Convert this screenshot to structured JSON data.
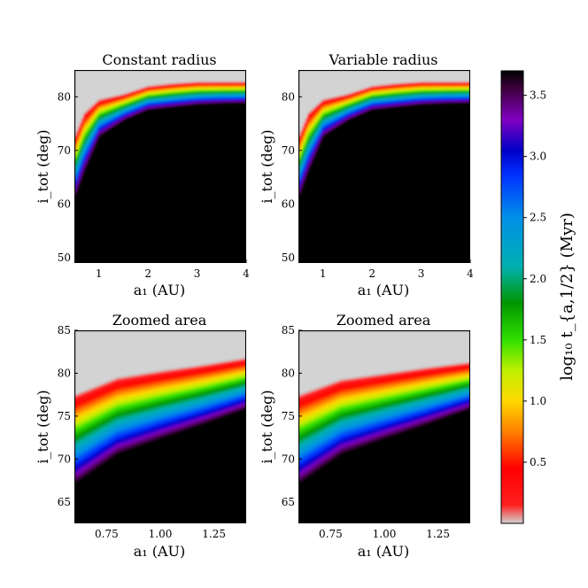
{
  "chart_data": [
    {
      "type": "heatmap",
      "id": "tl",
      "title": "Constant radius",
      "xlabel": "a₁ (AU)",
      "ylabel": "i_tot (deg)",
      "xlim": [
        0.5,
        4.0
      ],
      "ylim": [
        49.0,
        85.0
      ],
      "x_ticks": [
        1,
        2,
        3,
        4
      ],
      "y_ticks": [
        50,
        60,
        70,
        80
      ],
      "x_tick_labels": [
        "1",
        "2",
        "3",
        "4"
      ],
      "y_tick_labels": [
        "50",
        "60",
        "70",
        "80"
      ],
      "boundary_curve": {
        "a": [
          0.5,
          0.7,
          1.0,
          1.5,
          2.0,
          2.5,
          3.0,
          3.5,
          4.0
        ],
        "i_upper": [
          72.5,
          77.0,
          79.5,
          80.5,
          82.0,
          82.5,
          82.8,
          82.8,
          82.8
        ],
        "i_lower": [
          61.0,
          66.0,
          72.5,
          75.5,
          77.5,
          78.0,
          78.5,
          78.7,
          78.8
        ]
      }
    },
    {
      "type": "heatmap",
      "id": "tr",
      "title": "Variable radius",
      "xlabel": "a₁ (AU)",
      "ylabel": "i_tot (deg)",
      "xlim": [
        0.5,
        4.0
      ],
      "ylim": [
        49.0,
        85.0
      ],
      "x_ticks": [
        1,
        2,
        3,
        4
      ],
      "y_ticks": [
        50,
        60,
        70,
        80
      ],
      "x_tick_labels": [
        "1",
        "2",
        "3",
        "4"
      ],
      "y_tick_labels": [
        "50",
        "60",
        "70",
        "80"
      ],
      "boundary_curve": {
        "a": [
          0.5,
          0.7,
          1.0,
          1.5,
          2.0,
          2.5,
          3.0,
          3.5,
          4.0
        ],
        "i_upper": [
          72.5,
          77.0,
          79.5,
          80.5,
          82.0,
          82.5,
          82.8,
          82.8,
          82.8
        ],
        "i_lower": [
          61.0,
          66.0,
          72.5,
          75.5,
          77.5,
          78.0,
          78.5,
          78.7,
          78.8
        ]
      }
    },
    {
      "type": "heatmap",
      "id": "bl",
      "title": "Zoomed area",
      "xlabel": "a₁ (AU)",
      "ylabel": "i_tot (deg)",
      "xlim": [
        0.6,
        1.4
      ],
      "ylim": [
        62.5,
        85.0
      ],
      "x_ticks": [
        0.75,
        1.0,
        1.25
      ],
      "y_ticks": [
        65,
        70,
        75,
        80,
        85
      ],
      "x_tick_labels": [
        "0.75",
        "1.00",
        "1.25"
      ],
      "y_tick_labels": [
        "65",
        "70",
        "75",
        "80",
        "85"
      ],
      "boundary_curve": {
        "a": [
          0.6,
          0.8,
          1.0,
          1.2,
          1.4
        ],
        "i_upper": [
          77.5,
          79.5,
          80.3,
          81.0,
          81.8
        ],
        "i_lower": [
          67.0,
          70.5,
          72.3,
          74.0,
          75.8
        ]
      }
    },
    {
      "type": "heatmap",
      "id": "br",
      "title": "Zoomed area",
      "xlabel": "a₁ (AU)",
      "ylabel": "i_tot (deg)",
      "xlim": [
        0.6,
        1.4
      ],
      "ylim": [
        62.5,
        85.0
      ],
      "x_ticks": [
        0.75,
        1.0,
        1.25
      ],
      "y_ticks": [
        65,
        70,
        75,
        80,
        85
      ],
      "x_tick_labels": [
        "0.75",
        "1.00",
        "1.25"
      ],
      "y_tick_labels": [
        "65",
        "70",
        "75",
        "80",
        "85"
      ],
      "boundary_curve": {
        "a": [
          0.6,
          0.8,
          1.0,
          1.2,
          1.4
        ],
        "i_upper": [
          77.5,
          79.3,
          80.0,
          80.7,
          81.3
        ],
        "i_lower": [
          67.0,
          70.5,
          72.3,
          74.0,
          75.8
        ]
      }
    }
  ],
  "colorbar": {
    "label": "log₁₀ t_{a,1/2} (Myr)",
    "range": [
      0.0,
      3.7
    ],
    "ticks": [
      0.5,
      1.0,
      1.5,
      2.0,
      2.5,
      3.0,
      3.5
    ],
    "tick_labels": [
      "0.5",
      "1.0",
      "1.5",
      "2.0",
      "2.5",
      "3.0",
      "3.5"
    ],
    "colormap_stops": [
      {
        "v": 0.0,
        "color": "#d3d3d3"
      },
      {
        "v": 0.15,
        "color": "#ff2020"
      },
      {
        "v": 0.45,
        "color": "#ff0000"
      },
      {
        "v": 0.75,
        "color": "#ff8000"
      },
      {
        "v": 1.0,
        "color": "#ffd800"
      },
      {
        "v": 1.25,
        "color": "#c0f000"
      },
      {
        "v": 1.5,
        "color": "#30e000"
      },
      {
        "v": 1.8,
        "color": "#009600"
      },
      {
        "v": 2.1,
        "color": "#00b0b0"
      },
      {
        "v": 2.5,
        "color": "#0090e8"
      },
      {
        "v": 2.85,
        "color": "#0030ff"
      },
      {
        "v": 3.05,
        "color": "#0000c8"
      },
      {
        "v": 3.3,
        "color": "#8000c0"
      },
      {
        "v": 3.55,
        "color": "#400040"
      },
      {
        "v": 3.7,
        "color": "#000000"
      }
    ]
  },
  "colors": {
    "gray": "#d3d3d3",
    "black": "#000000"
  }
}
